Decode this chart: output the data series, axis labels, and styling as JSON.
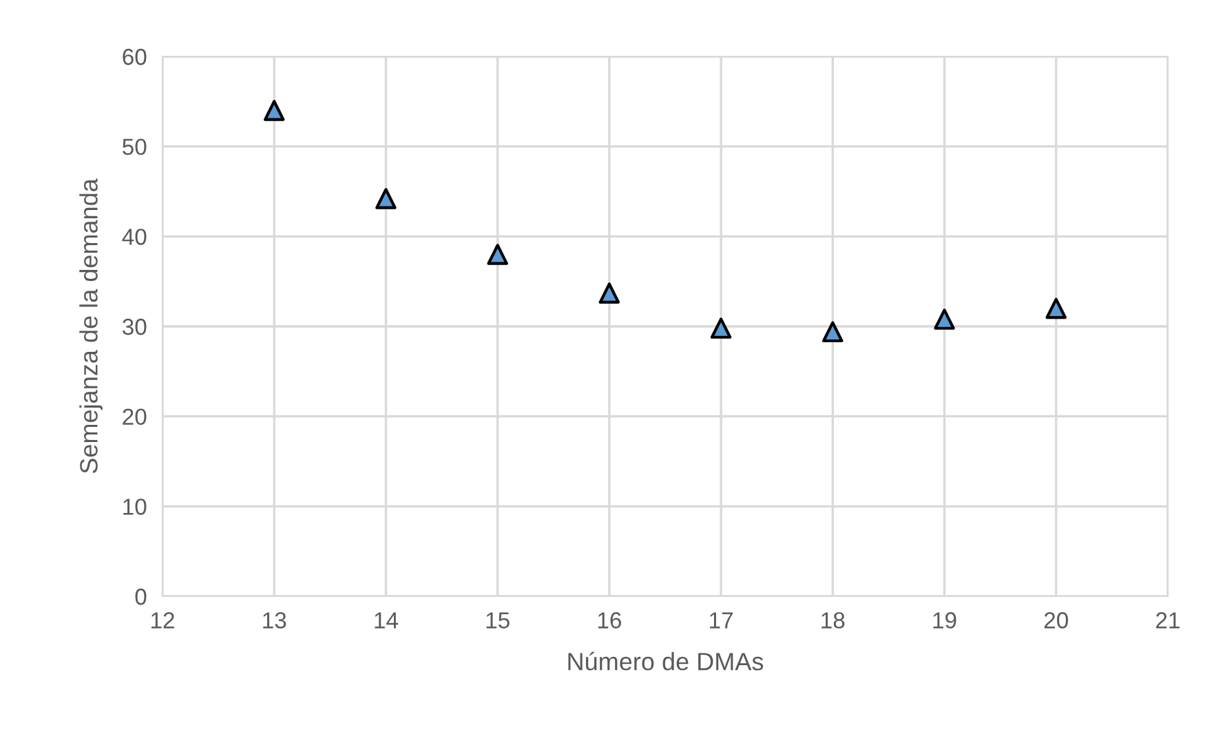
{
  "chart_data": {
    "type": "scatter",
    "xlabel": "Número de DMAs",
    "ylabel": "Semejanza de la demanda",
    "x": [
      13,
      14,
      15,
      16,
      17,
      18,
      19,
      20
    ],
    "series": [
      {
        "color": "#5b9bd5",
        "values": [
          54.0,
          44.2,
          38.0,
          33.7,
          29.8,
          29.4,
          30.8,
          32.0
        ]
      }
    ],
    "xlim": [
      12,
      21
    ],
    "xticks": [
      12,
      13,
      14,
      15,
      16,
      17,
      18,
      19,
      20,
      21
    ],
    "ylim": [
      0,
      60
    ],
    "yticks": [
      0,
      10,
      20,
      30,
      40,
      50,
      60
    ],
    "grid": true,
    "marker": "triangle"
  }
}
